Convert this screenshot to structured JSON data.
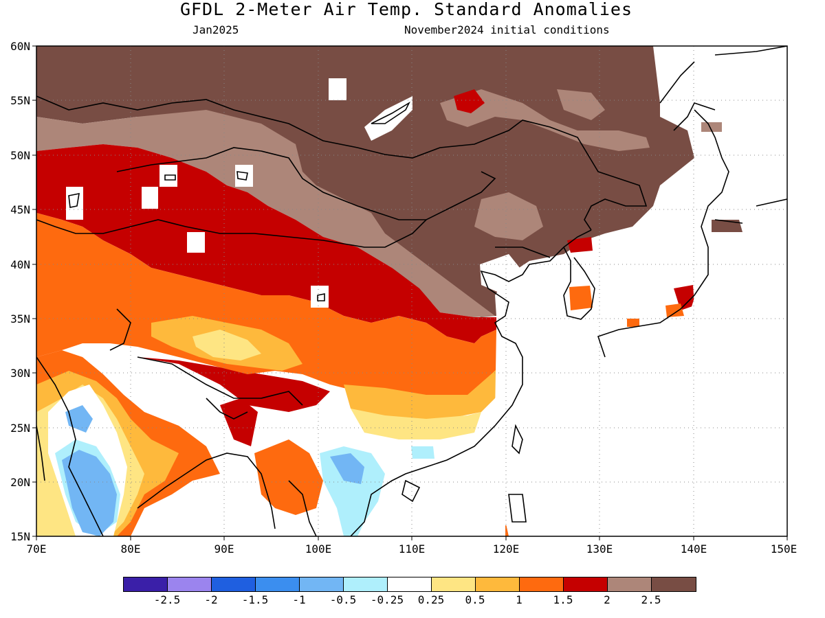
{
  "header": {
    "title": "GFDL 2-Meter Air Temp. Standard Anomalies",
    "target_month": "Jan2025",
    "init_conditions": "November2024 initial conditions"
  },
  "map": {
    "lat_labels": [
      "60N",
      "55N",
      "50N",
      "45N",
      "40N",
      "35N",
      "30N",
      "25N",
      "20N",
      "15N"
    ],
    "lon_labels": [
      "70E",
      "80E",
      "90E",
      "100E",
      "110E",
      "120E",
      "130E",
      "140E",
      "150E"
    ],
    "lat_range": [
      15,
      60
    ],
    "lon_range": [
      70,
      150
    ],
    "gridlines": true,
    "colorbar": {
      "colors": [
        "#3a1fa8",
        "#9b84ee",
        "#1f5fe0",
        "#3b8eef",
        "#72b6f4",
        "#afeffc",
        "#ffffff",
        "#fee583",
        "#feb93c",
        "#fe6a0f",
        "#c50000",
        "#ad8679",
        "#784d44"
      ],
      "labels": [
        "-2.5",
        "-2",
        "-1.5",
        "-1",
        "-0.5",
        "-0.25",
        "0.25",
        "0.5",
        "1",
        "1.5",
        "2",
        "2.5"
      ]
    }
  }
}
